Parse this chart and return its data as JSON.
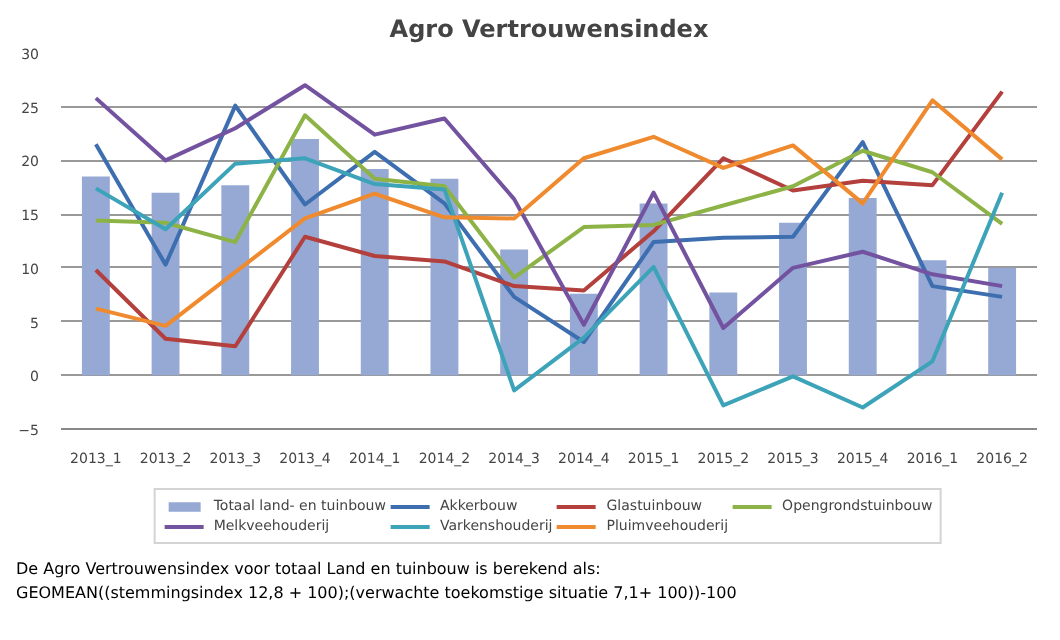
{
  "chart_data": {
    "type": "line",
    "title": "Agro Vertrouwensindex",
    "categories": [
      "2013_1",
      "2013_2",
      "2013_3",
      "2013_4",
      "2014_1",
      "2014_2",
      "2014_3",
      "2014_4",
      "2015_1",
      "2015_2",
      "2015_3",
      "2015_4",
      "2016_1",
      "2016_2"
    ],
    "series": [
      {
        "name": "Totaal land- en tuinbouw",
        "type": "bar",
        "color": "#95a9d4",
        "values": [
          18.5,
          17,
          17.7,
          22,
          19.2,
          18.3,
          11.7,
          7.6,
          16.0,
          7.7,
          14.2,
          16.5,
          10.7,
          10.0
        ]
      },
      {
        "name": "Akkerbouw",
        "color": "#3d6eb0",
        "values": [
          21.5,
          10.3,
          25.1,
          15.9,
          20.8,
          16,
          7.3,
          3.1,
          12.4,
          12.8,
          12.9,
          21.7,
          8.3,
          7.3
        ]
      },
      {
        "name": "Glastuinbouw",
        "color": "#b3403c",
        "values": [
          9.8,
          3.4,
          2.7,
          12.9,
          11.1,
          10.6,
          8.3,
          7.9,
          13.4,
          20.2,
          17.2,
          18.1,
          17.7,
          26.4
        ]
      },
      {
        "name": "Opengrondstuinbouw",
        "color": "#8db346",
        "values": [
          14.4,
          14.2,
          12.4,
          24.2,
          18.3,
          17.6,
          9.1,
          13.8,
          14.0,
          15.8,
          17.6,
          20.9,
          18.9,
          14.1
        ]
      },
      {
        "name": "Melkveehouderij",
        "color": "#7352a0",
        "values": [
          25.8,
          20,
          23,
          27,
          22.4,
          23.9,
          16.4,
          4.7,
          17.0,
          4.4,
          10.0,
          11.5,
          9.4,
          8.3
        ]
      },
      {
        "name": "Varkenshouderij",
        "color": "#3ca3b9",
        "values": [
          17.4,
          13.6,
          19.7,
          20.2,
          17.8,
          17.3,
          -1.4,
          3.5,
          10.1,
          -2.8,
          -0.1,
          -3.0,
          1.3,
          17.0
        ]
      },
      {
        "name": "Pluimveehouderij",
        "color": "#f08a2e",
        "values": [
          6.2,
          4.6,
          9.6,
          14.6,
          16.9,
          14.7,
          14.6,
          20.2,
          22.2,
          19.3,
          21.4,
          16.0,
          25.6,
          20.1
        ]
      }
    ],
    "ylim": [
      -5,
      30
    ],
    "yticks": [
      -5,
      0,
      5,
      10,
      15,
      20,
      25,
      30
    ],
    "grid": "y",
    "legend": "bottom",
    "annotations": [
      "De Agro Vertrouwensindex voor totaal Land en tuinbouw is berekend als:",
      "GEOMEAN((stemmingsindex 12,8 + 100);(verwachte toekomstige situatie  7,1+ 100))-100"
    ]
  }
}
